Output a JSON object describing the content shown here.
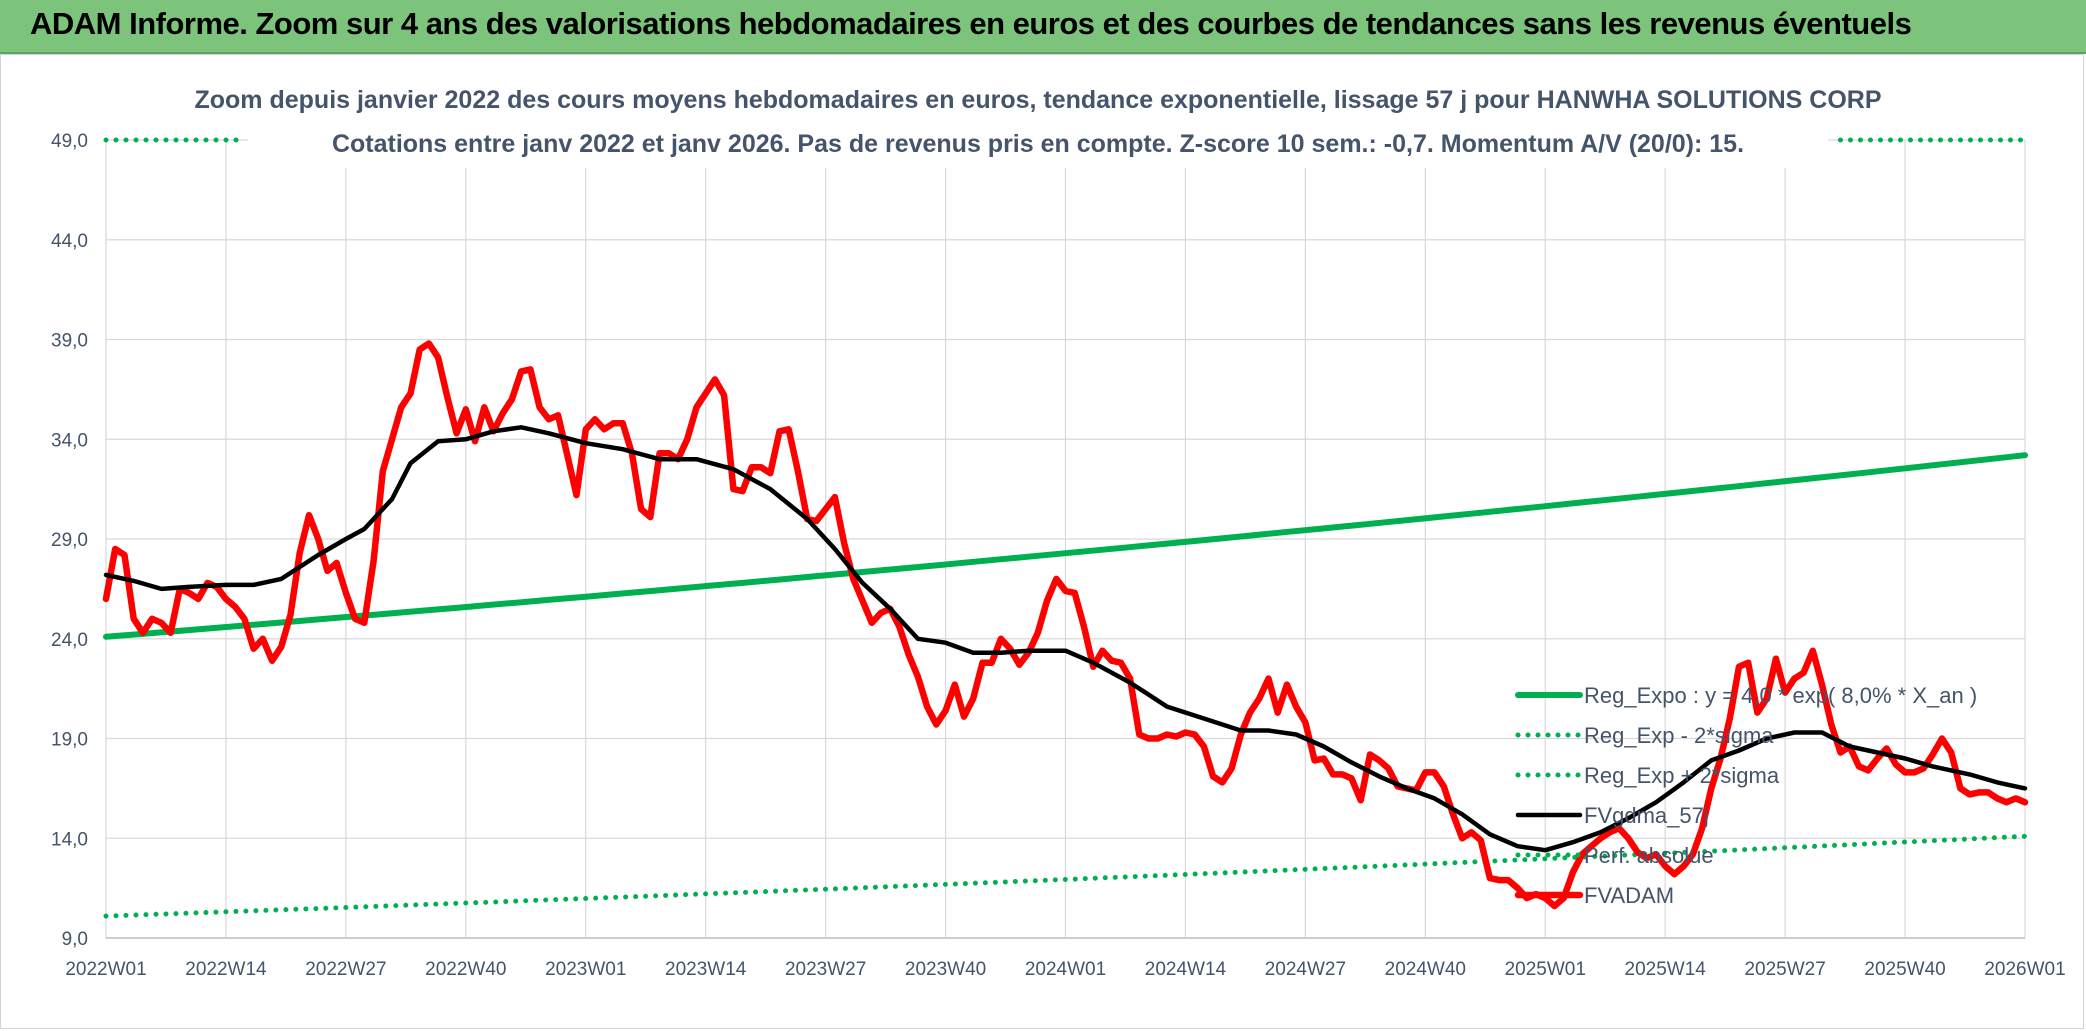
{
  "banner": {
    "title": "ADAM Informe. Zoom sur 4 ans des valorisations hebdomadaires en euros et des courbes de tendances sans les revenus éventuels"
  },
  "colors": {
    "banner_bg": "#7cc47c",
    "green": "#00b050",
    "red": "#ff0000",
    "black": "#000000",
    "grid": "#d9d9d9",
    "text": "#44546a"
  },
  "chart_data": {
    "type": "line",
    "title": "Zoom depuis janvier 2022 des cours moyens hebdomadaires en euros, tendance exponentielle, lissage 57 j pour HANWHA SOLUTIONS CORP",
    "subtitle": "Cotations entre janv 2022 et janv 2026. Pas de revenus pris en compte. Z-score 10 sem.: -0,7. Momentum A/V (20/0): 15.",
    "xlabel": "",
    "ylabel": "",
    "x_range": [
      0,
      208
    ],
    "ylim": [
      9,
      49
    ],
    "y_ticks": [
      "9,0",
      "14,0",
      "19,0",
      "24,0",
      "29,0",
      "34,0",
      "39,0",
      "44,0",
      "49,0"
    ],
    "y_tick_values": [
      9,
      14,
      19,
      24,
      29,
      34,
      39,
      44,
      49
    ],
    "x_ticks": [
      "2022W01",
      "2022W14",
      "2022W27",
      "2022W40",
      "2023W01",
      "2023W14",
      "2023W27",
      "2023W40",
      "2024W01",
      "2024W14",
      "2024W27",
      "2024W40",
      "2025W01",
      "2025W14",
      "2025W27",
      "2025W40",
      "2026W01"
    ],
    "x_tick_positions": [
      0,
      13,
      26,
      39,
      52,
      65,
      78,
      91,
      104,
      117,
      130,
      143,
      156,
      169,
      182,
      195,
      208
    ],
    "legend": [
      "Reg_Expo : y = 4,0 * exp( 8,0% *  X_an )",
      "Reg_Exp - 2*sigma",
      "Reg_Exp + 2*sigma",
      "FVgdma_57j",
      "Perf. absolue",
      "FVADAM"
    ],
    "series": [
      {
        "name": "Reg_Expo : y = 4,0 * exp( 8,0% *  X_an )",
        "style": "solid-green",
        "x": [
          0,
          208
        ],
        "y": [
          24.1,
          33.2
        ],
        "curve": "exp"
      },
      {
        "name": "Reg_Exp - 2*sigma",
        "style": "dotted-green",
        "x": [
          0,
          208
        ],
        "y": [
          10.1,
          14.1
        ],
        "curve": "exp"
      },
      {
        "name": "Reg_Exp + 2*sigma",
        "style": "dotted-green",
        "x": [
          0,
          15,
          188,
          208
        ],
        "y": [
          49.0,
          49.0,
          49.0,
          49.0
        ],
        "segments": [
          [
            0,
            15
          ],
          [
            188,
            208
          ]
        ]
      },
      {
        "name": "FVgdma_57j",
        "style": "solid-black",
        "x": [
          0,
          3,
          6,
          9,
          13,
          16,
          19,
          23,
          26,
          28,
          31,
          33,
          36,
          39,
          42,
          45,
          48,
          52,
          56,
          60,
          64,
          68,
          72,
          76,
          79,
          82,
          85,
          88,
          91,
          94,
          97,
          100,
          104,
          107,
          111,
          115,
          119,
          123,
          126,
          129,
          132,
          135,
          138,
          141,
          144,
          147,
          150,
          153,
          156,
          159,
          162,
          165,
          168,
          171,
          174,
          177,
          180,
          183,
          186,
          189,
          192,
          195,
          198,
          202,
          205,
          208
        ],
        "y": [
          27.2,
          26.9,
          26.5,
          26.6,
          26.7,
          26.7,
          27.0,
          28.2,
          29.0,
          29.5,
          31.0,
          32.8,
          33.9,
          34.0,
          34.4,
          34.6,
          34.3,
          33.8,
          33.5,
          33.0,
          33.0,
          32.5,
          31.5,
          30.0,
          28.5,
          26.8,
          25.5,
          24.0,
          23.8,
          23.3,
          23.3,
          23.4,
          23.4,
          22.8,
          21.8,
          20.6,
          20.0,
          19.4,
          19.4,
          19.2,
          18.6,
          17.8,
          17.1,
          16.5,
          16.0,
          15.2,
          14.2,
          13.6,
          13.4,
          13.8,
          14.3,
          15.0,
          15.8,
          16.8,
          17.9,
          18.4,
          19.0,
          19.3,
          19.3,
          18.6,
          18.3,
          18.0,
          17.6,
          17.2,
          16.8,
          16.5
        ]
      },
      {
        "name": "Perf. absolue",
        "style": "dotted-green",
        "x": [],
        "y": []
      },
      {
        "name": "FVADAM",
        "style": "solid-red",
        "x": [
          0,
          1,
          2,
          3,
          4,
          5,
          6,
          7,
          8,
          9,
          10,
          11,
          12,
          13,
          14,
          15,
          16,
          17,
          18,
          19,
          20,
          21,
          22,
          23,
          24,
          25,
          26,
          27,
          28,
          29,
          30,
          31,
          32,
          33,
          34,
          35,
          36,
          37,
          38,
          39,
          40,
          41,
          42,
          43,
          44,
          45,
          46,
          47,
          48,
          49,
          50,
          51,
          52,
          53,
          54,
          55,
          56,
          57,
          58,
          59,
          60,
          61,
          62,
          63,
          64,
          65,
          66,
          67,
          68,
          69,
          70,
          71,
          72,
          73,
          74,
          75,
          76,
          77,
          78,
          79,
          80,
          81,
          82,
          83,
          84,
          85,
          86,
          87,
          88,
          89,
          90,
          91,
          92,
          93,
          94,
          95,
          96,
          97,
          98,
          99,
          100,
          101,
          102,
          103,
          104,
          105,
          106,
          107,
          108,
          109,
          110,
          111,
          112,
          113,
          114,
          115,
          116,
          117,
          118,
          119,
          120,
          121,
          122,
          123,
          124,
          125,
          126,
          127,
          128,
          129,
          130,
          131,
          132,
          133,
          134,
          135,
          136,
          137,
          138,
          139,
          140,
          141,
          142,
          143,
          144,
          145,
          146,
          147,
          148,
          149,
          150,
          151,
          152,
          153,
          154,
          155,
          156,
          157,
          158,
          159,
          160,
          161,
          162,
          163,
          164,
          165,
          166,
          167,
          168,
          169,
          170,
          171,
          172,
          173,
          174,
          175,
          176,
          177,
          178,
          179,
          180,
          181,
          182,
          183,
          184,
          185,
          186,
          187,
          188,
          189,
          190,
          191,
          192,
          193,
          194,
          195,
          196,
          197,
          198,
          199,
          200,
          201,
          202,
          203,
          204,
          205,
          206,
          207,
          208
        ],
        "y": [
          26.0,
          28.5,
          28.2,
          25.0,
          24.3,
          25.0,
          24.8,
          24.3,
          26.5,
          26.3,
          26.0,
          26.8,
          26.6,
          26.0,
          25.6,
          25.0,
          23.5,
          24.0,
          22.9,
          23.6,
          25.2,
          28.3,
          30.2,
          29.0,
          27.4,
          27.8,
          26.3,
          25.0,
          24.8,
          27.9,
          32.4,
          34.0,
          35.6,
          36.3,
          38.5,
          38.8,
          38.1,
          36.1,
          34.3,
          35.5,
          33.9,
          35.6,
          34.4,
          35.3,
          36.0,
          37.4,
          37.5,
          35.6,
          35.0,
          35.2,
          33.2,
          31.2,
          34.5,
          35.0,
          34.5,
          34.8,
          34.8,
          33.3,
          30.5,
          30.1,
          33.3,
          33.3,
          33.0,
          34.0,
          35.6,
          36.3,
          37.0,
          36.2,
          31.5,
          31.4,
          32.6,
          32.6,
          32.3,
          34.4,
          34.5,
          32.4,
          30.0,
          29.9,
          30.5,
          31.1,
          28.8,
          27.0,
          25.9,
          24.8,
          25.3,
          25.5,
          24.6,
          23.2,
          22.1,
          20.6,
          19.7,
          20.4,
          21.7,
          20.1,
          21.0,
          22.8,
          22.8,
          24.0,
          23.5,
          22.7,
          23.3,
          24.3,
          25.9,
          27.0,
          26.4,
          26.3,
          24.6,
          22.6,
          23.4,
          22.9,
          22.8,
          22.0,
          19.2,
          19.0,
          19.0,
          19.2,
          19.1,
          19.3,
          19.2,
          18.6,
          17.1,
          16.8,
          17.5,
          19.2,
          20.3,
          21.0,
          22.0,
          20.3,
          21.7,
          20.6,
          19.8,
          17.9,
          18.0,
          17.2,
          17.2,
          17.0,
          15.9,
          18.2,
          17.9,
          17.5,
          16.6,
          16.5,
          16.4,
          17.3,
          17.3,
          16.6,
          15.2,
          14.0,
          14.3,
          13.9,
          12.0,
          11.9,
          11.9,
          11.5,
          11.0,
          11.2,
          11.0,
          10.6,
          11.0,
          12.3,
          13.2,
          13.6,
          14.0,
          14.3,
          14.5,
          14.0,
          13.3,
          13.0,
          13.2,
          12.6,
          12.2,
          12.6,
          13.2,
          14.5,
          16.5,
          18.0,
          20.0,
          22.6,
          22.8,
          20.3,
          21.0,
          23.0,
          21.3,
          22.0,
          22.3,
          23.4,
          21.7,
          19.7,
          18.3,
          18.6,
          17.6,
          17.4,
          18.0,
          18.5,
          17.7,
          17.3,
          17.3,
          17.5,
          18.2,
          19.0,
          18.3,
          16.5,
          16.2,
          16.3,
          16.3,
          16.0,
          15.8,
          16.0,
          15.8
        ]
      }
    ]
  }
}
